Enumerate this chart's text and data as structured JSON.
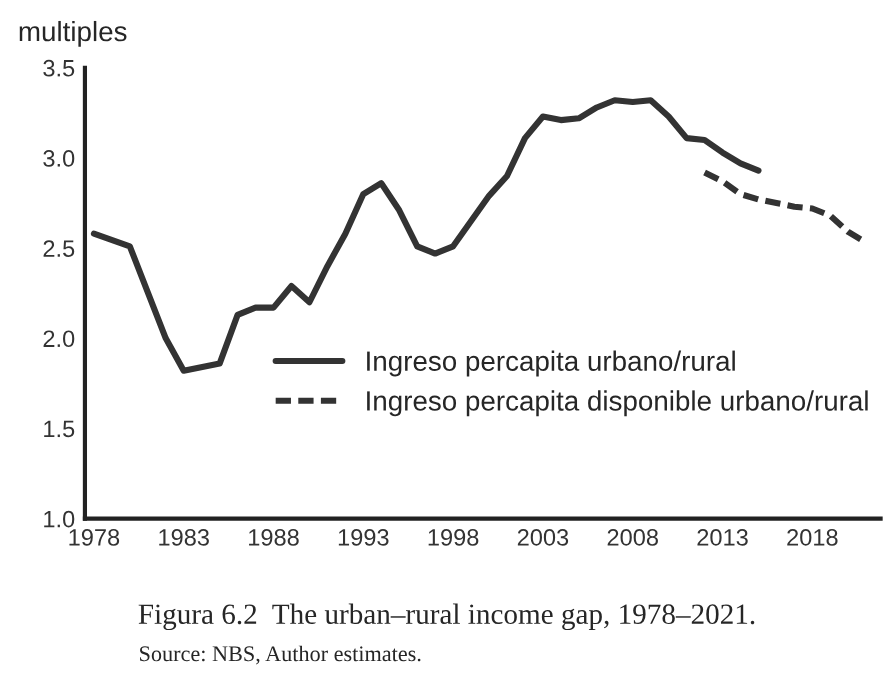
{
  "chart_data": {
    "type": "line",
    "title": "Figura 6.2  The urban–rural income gap, 1978–2021.",
    "ylabel": "multiples",
    "annotations": [
      "Source: NBS, Author estimates."
    ],
    "series": [
      {
        "name": "Ingreso percapita urbano/rural",
        "color": "#333333",
        "line_style": "solid",
        "x": [
          1978,
          1980,
          1982,
          1983,
          1985,
          1986,
          1987,
          1988,
          1989,
          1990,
          1991,
          1992,
          1993,
          1994,
          1995,
          1996,
          1997,
          1998,
          1999,
          2000,
          2001,
          2002,
          2003,
          2004,
          2005,
          2006,
          2007,
          2008,
          2009,
          2010,
          2011,
          2012,
          2013,
          2014,
          2015
        ],
        "values": [
          2.58,
          2.51,
          2.0,
          1.82,
          1.86,
          2.13,
          2.17,
          2.17,
          2.29,
          2.2,
          2.4,
          2.58,
          2.8,
          2.86,
          2.71,
          2.51,
          2.47,
          2.51,
          2.65,
          2.79,
          2.9,
          3.11,
          3.23,
          3.21,
          3.22,
          3.28,
          3.32,
          3.31,
          3.32,
          3.23,
          3.11,
          3.1,
          3.03,
          2.97,
          2.93
        ]
      },
      {
        "name": "Ingreso percapita disponible urbano/rural",
        "color": "#333333",
        "line_style": "dashed",
        "x": [
          2012,
          2013,
          2014,
          2015,
          2016,
          2017,
          2018,
          2019,
          2020,
          2021
        ],
        "values": [
          2.92,
          2.87,
          2.8,
          2.77,
          2.75,
          2.73,
          2.72,
          2.68,
          2.59,
          2.53
        ]
      }
    ],
    "xlim": [
      1977.5,
      2021.8
    ],
    "xticks": [
      1978,
      1983,
      1988,
      1993,
      1998,
      2003,
      2008,
      2013,
      2018
    ],
    "ylim": [
      1.0,
      3.5
    ],
    "yticks": [
      {
        "value": 1.0,
        "label": "1.0"
      },
      {
        "value": 1.5,
        "label": "1.5"
      },
      {
        "value": 2.0,
        "label": "2.0"
      },
      {
        "value": 2.5,
        "label": "2.5"
      },
      {
        "value": 3.0,
        "label": "3.0"
      },
      {
        "value": 3.5,
        "label": "3.5"
      }
    ],
    "legend": "right",
    "grid": false
  }
}
